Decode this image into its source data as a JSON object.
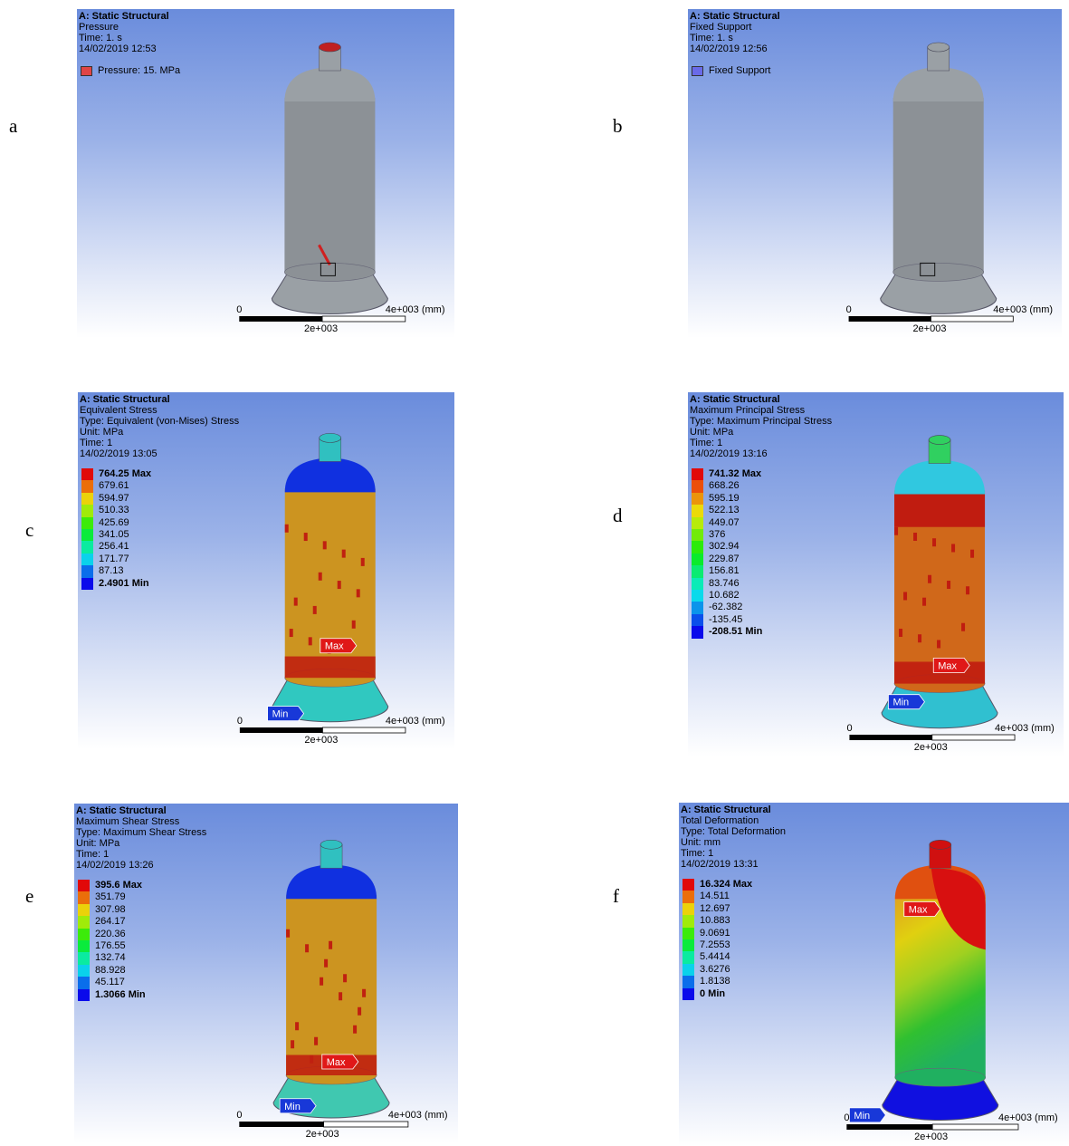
{
  "panels": [
    {
      "label": "a",
      "header": [
        "A: Static Structural",
        "Pressure",
        "Time: 1. s",
        "14/02/2019 12:53"
      ],
      "legend": [
        "Pressure: 15. MPa"
      ],
      "scale": [
        "0",
        "4e+003 (mm)",
        "2e+003"
      ]
    },
    {
      "label": "b",
      "header": [
        "A: Static Structural",
        "Fixed Support",
        "Time: 1. s",
        "14/02/2019 12:56"
      ],
      "legend": [
        "Fixed Support"
      ],
      "scale": [
        "0",
        "4e+003 (mm)",
        "2e+003"
      ]
    },
    {
      "label": "c",
      "header": [
        "A: Static Structural",
        "Equivalent Stress",
        "Type: Equivalent (von-Mises) Stress",
        "Unit: MPa",
        "Time: 1",
        "14/02/2019 13:05"
      ],
      "legend": [
        "764.25 Max",
        "679.61",
        "594.97",
        "510.33",
        "425.69",
        "341.05",
        "256.41",
        "171.77",
        "87.13",
        "2.4901 Min"
      ],
      "probes": [
        "Max",
        "Min"
      ],
      "scale": [
        "0",
        "4e+003 (mm)",
        "2e+003"
      ]
    },
    {
      "label": "d",
      "header": [
        "A: Static Structural",
        "Maximum Principal Stress",
        "Type: Maximum Principal Stress",
        "Unit: MPa",
        "Time: 1",
        "14/02/2019 13:16"
      ],
      "legend": [
        "741.32 Max",
        "668.26",
        "595.19",
        "522.13",
        "449.07",
        "376",
        "302.94",
        "229.87",
        "156.81",
        "83.746",
        "10.682",
        "-62.382",
        "-135.45",
        "-208.51 Min"
      ],
      "probes": [
        "Max",
        "Min"
      ],
      "scale": [
        "0",
        "4e+003 (mm)",
        "2e+003"
      ]
    },
    {
      "label": "e",
      "header": [
        "A: Static Structural",
        "Maximum Shear Stress",
        "Type: Maximum Shear Stress",
        "Unit: MPa",
        "Time: 1",
        "14/02/2019 13:26"
      ],
      "legend": [
        "395.6 Max",
        "351.79",
        "307.98",
        "264.17",
        "220.36",
        "176.55",
        "132.74",
        "88.928",
        "45.117",
        "1.3066 Min"
      ],
      "probes": [
        "Max",
        "Min"
      ],
      "scale": [
        "0",
        "4e+003 (mm)",
        "2e+003"
      ]
    },
    {
      "label": "f",
      "header": [
        "A: Static Structural",
        "Total Deformation",
        "Type: Total Deformation",
        "Unit: mm",
        "Time: 1",
        "14/02/2019 13:31"
      ],
      "legend": [
        "16.324 Max",
        "14.511",
        "12.697",
        "10.883",
        "9.0691",
        "7.2553",
        "5.4414",
        "3.6276",
        "1.8138",
        "0 Min"
      ],
      "probes": [
        "Max",
        "Min"
      ],
      "scale": [
        "0",
        "4e+003 (mm)",
        "2e+003"
      ]
    }
  ]
}
